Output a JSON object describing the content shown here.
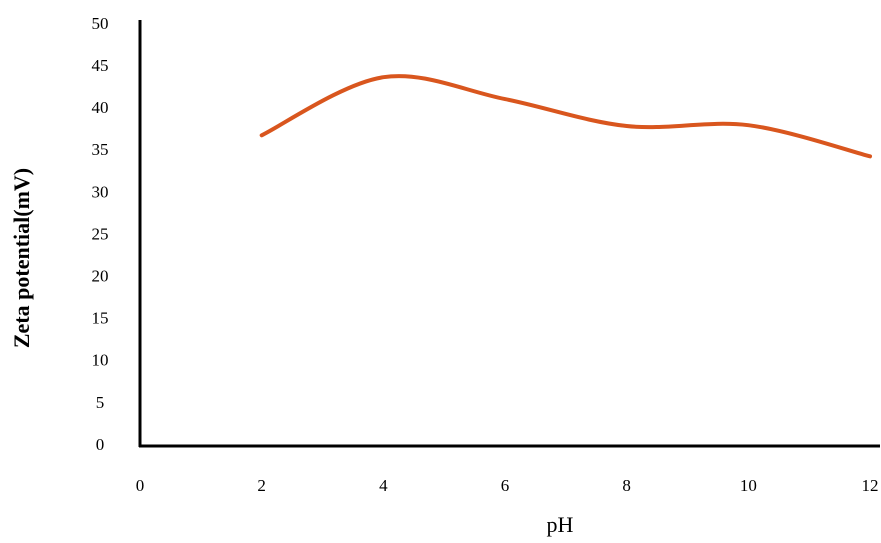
{
  "chart_data": {
    "type": "line",
    "smooth": true,
    "x_label": "pH",
    "y_label": "Zeta potential(mV)",
    "x": [
      2,
      4,
      6,
      8,
      10,
      12
    ],
    "series": [
      {
        "color": "#d9561e",
        "values": [
          36.9,
          43.8,
          41.2,
          38.0,
          38.1,
          34.4
        ]
      }
    ],
    "xlim": [
      0,
      12
    ],
    "ylim": [
      0,
      50
    ],
    "xticks": [
      0,
      2,
      4,
      6,
      8,
      10,
      12
    ],
    "yticks": [
      0,
      5,
      10,
      15,
      20,
      25,
      30,
      35,
      40,
      45,
      50
    ],
    "grid": false
  }
}
